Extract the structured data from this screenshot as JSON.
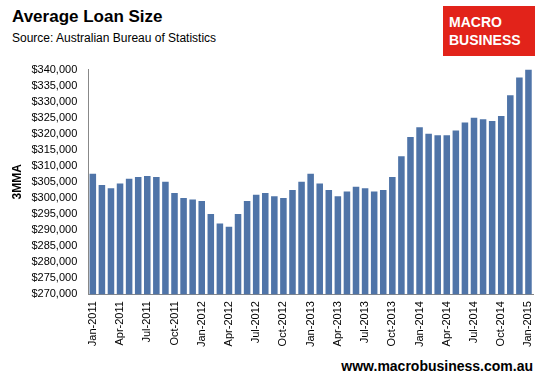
{
  "chart_data": {
    "type": "bar",
    "title": "Average Loan Size",
    "subtitle": "Source: Australian Bureau of Statistics",
    "logo": [
      "MACRO",
      "BUSINESS"
    ],
    "footer": "www.macrobusiness.com.au",
    "y_label": "3MMA",
    "categories": [
      "Jan-2011",
      null,
      null,
      "Apr-2011",
      null,
      null,
      "Jul-2011",
      null,
      null,
      "Oct-2011",
      null,
      null,
      "Jan-2012",
      null,
      null,
      "Apr-2012",
      null,
      null,
      "Jul-2012",
      null,
      null,
      "Oct-2012",
      null,
      null,
      "Jan-2013",
      null,
      null,
      "Apr-2013",
      null,
      null,
      "Jul-2013",
      null,
      null,
      "Oct-2013",
      null,
      null,
      "Jan-2014",
      null,
      null,
      "Apr-2014",
      null,
      null,
      "Jul-2014",
      null,
      null,
      "Oct-2014",
      null,
      null,
      "Jan-2015"
    ],
    "values": [
      307500,
      304000,
      303000,
      304500,
      306000,
      306500,
      306800,
      306500,
      305000,
      301500,
      300000,
      299500,
      299000,
      295000,
      292000,
      291000,
      295000,
      299000,
      301000,
      301500,
      300500,
      300000,
      302500,
      305000,
      307500,
      304500,
      302500,
      300500,
      302000,
      303500,
      303000,
      302000,
      302500,
      306500,
      313000,
      319000,
      322000,
      320000,
      319500,
      319500,
      321000,
      323500,
      325000,
      324500,
      324000,
      325500,
      332000,
      337500,
      340000
    ],
    "color": "#4f74a8",
    "ylim": [
      270000,
      340000
    ],
    "yticks": [
      {
        "value": 270000,
        "label": "$270,000"
      },
      {
        "value": 275000,
        "label": "$275,000"
      },
      {
        "value": 280000,
        "label": "$280,000"
      },
      {
        "value": 285000,
        "label": "$285,000"
      },
      {
        "value": 290000,
        "label": "$290,000"
      },
      {
        "value": 295000,
        "label": "$295,000"
      },
      {
        "value": 300000,
        "label": "$300,000"
      },
      {
        "value": 305000,
        "label": "$305,000"
      },
      {
        "value": 310000,
        "label": "$310,000"
      },
      {
        "value": 315000,
        "label": "$315,000"
      },
      {
        "value": 320000,
        "label": "$320,000"
      },
      {
        "value": 325000,
        "label": "$325,000"
      },
      {
        "value": 330000,
        "label": "$330,000"
      },
      {
        "value": 335000,
        "label": "$335,000"
      },
      {
        "value": 340000,
        "label": "$340,000"
      }
    ],
    "grid": false
  }
}
